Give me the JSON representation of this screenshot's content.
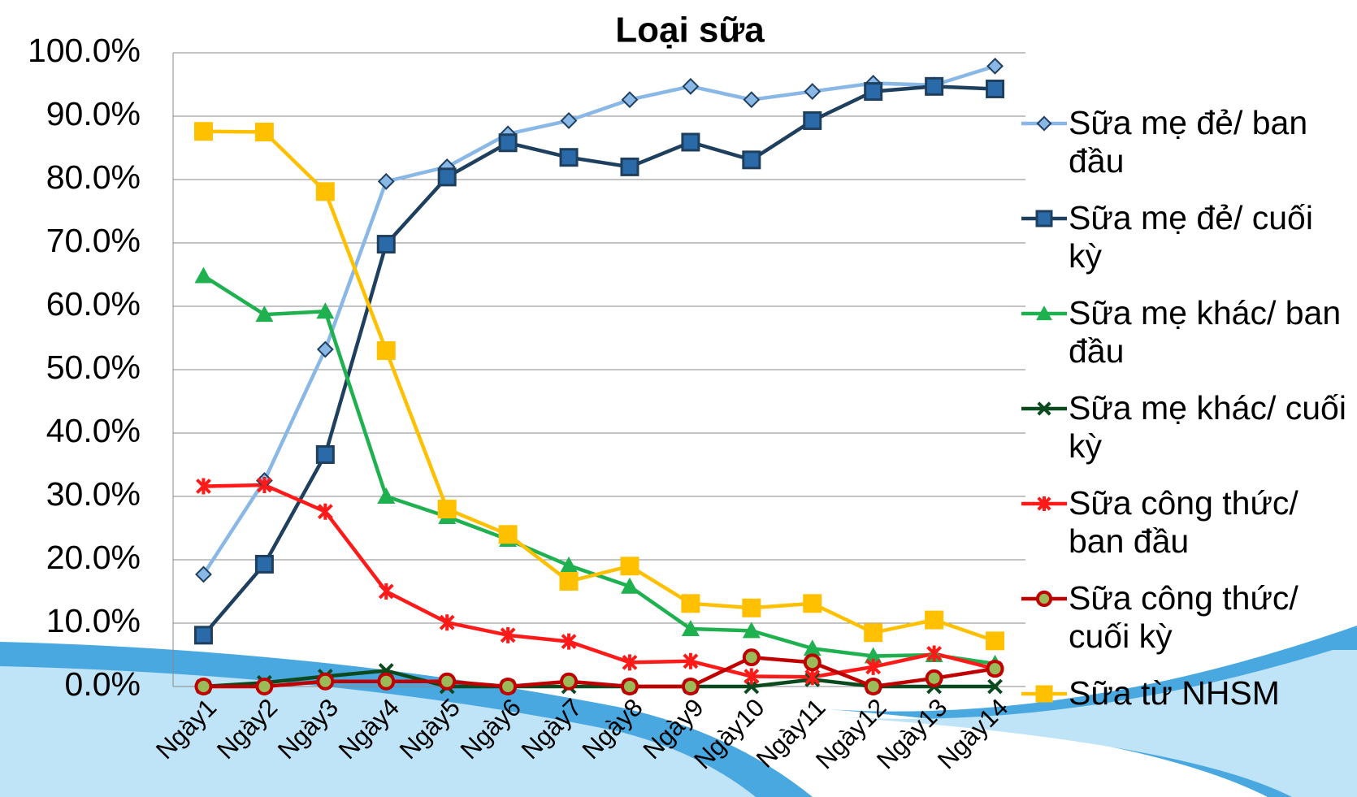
{
  "chart_data": {
    "type": "line",
    "title": "Loại sữa",
    "categories": [
      "Ngày1",
      "Ngày2",
      "Ngày3",
      "Ngày4",
      "Ngày5",
      "Ngày6",
      "Ngày7",
      "Ngày8",
      "Ngày9",
      "Ngày10",
      "Ngày11",
      "Ngày12",
      "Ngày13",
      "Ngày14"
    ],
    "ylim": [
      0,
      100
    ],
    "yticks": [
      {
        "value": 0,
        "label": "0.0%"
      },
      {
        "value": 10,
        "label": "10.0%"
      },
      {
        "value": 20,
        "label": "20.0%"
      },
      {
        "value": 30,
        "label": "30.0%"
      },
      {
        "value": 40,
        "label": "40.0%"
      },
      {
        "value": 50,
        "label": "50.0%"
      },
      {
        "value": 60,
        "label": "60.0%"
      },
      {
        "value": 70,
        "label": "70.0%"
      },
      {
        "value": 80,
        "label": "80.0%"
      },
      {
        "value": 90,
        "label": "90.0%"
      },
      {
        "value": 100,
        "label": "100.0%"
      }
    ],
    "grid": true,
    "legend": "right",
    "series": [
      {
        "name": "Sữa mẹ đẻ/ ban đầu",
        "color": "#8ab8e6",
        "marker": "diamond",
        "values": [
          17.7,
          32.5,
          53.2,
          79.7,
          82.0,
          87.2,
          89.3,
          92.6,
          94.7,
          92.6,
          93.9,
          95.2,
          94.9,
          97.9
        ]
      },
      {
        "name": "Sữa mẹ đẻ/ cuối kỳ",
        "color": "#1f3f5f",
        "marker": "square",
        "values": [
          8.1,
          19.3,
          36.6,
          69.8,
          80.4,
          85.8,
          83.5,
          82.0,
          85.9,
          83.1,
          89.3,
          93.9,
          94.7,
          94.3
        ]
      },
      {
        "name": "Sữa mẹ khác/ ban đầu",
        "color": "#1fb050",
        "marker": "triangle",
        "values": [
          64.8,
          58.7,
          59.2,
          30.0,
          26.8,
          23.2,
          19.1,
          15.8,
          9.1,
          8.8,
          6.0,
          4.8,
          5.0,
          3.6
        ]
      },
      {
        "name": "Sữa mẹ khác/ cuối kỳ",
        "color": "#0b4a1f",
        "marker": "x",
        "values": [
          0,
          0.6,
          1.6,
          2.5,
          0,
          0,
          0,
          0,
          0,
          0,
          1.1,
          0,
          0,
          0
        ]
      },
      {
        "name": "Sữa công thức/ ban đầu",
        "color": "#ff1a1a",
        "marker": "star",
        "values": [
          31.6,
          31.8,
          27.6,
          15.0,
          10.1,
          8.1,
          7.1,
          3.8,
          4.0,
          1.6,
          1.5,
          3.1,
          5.2,
          2.8
        ]
      },
      {
        "name": "Sữa công thức/ cuối kỳ",
        "color": "#c00000",
        "marker": "circle",
        "values": [
          0,
          0,
          0.8,
          0.8,
          0.8,
          0,
          0.8,
          0,
          0,
          4.6,
          3.8,
          0,
          1.3,
          2.8
        ]
      },
      {
        "name": "Sữa từ NHSM",
        "color": "#ffc000",
        "marker": "square",
        "values": [
          87.6,
          87.5,
          78.1,
          53.0,
          28.0,
          24.0,
          16.6,
          19.0,
          13.1,
          12.4,
          13.1,
          8.5,
          10.5,
          7.2
        ]
      }
    ]
  }
}
